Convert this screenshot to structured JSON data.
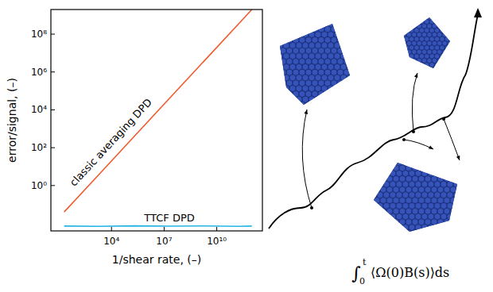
{
  "chart_data": {
    "type": "line",
    "x_label": "1/shear rate, (–)",
    "y_label": "error/signal, (–)",
    "log": true,
    "grid": false,
    "x": [
      20,
      2000,
      200000,
      20000000,
      2000000000,
      200000000000,
      1000000000000
    ],
    "series": [
      {
        "name": "classic averaging DPD",
        "color": "#f15a2e",
        "values": [
          0.04,
          4,
          400,
          40000,
          4000000,
          400000000,
          2000000000
        ]
      },
      {
        "name": "TTCF DPD",
        "color": "#27b4e6",
        "values": [
          0.0072,
          0.007,
          0.0074,
          0.0071,
          0.0073,
          0.007,
          0.0072
        ]
      }
    ],
    "xlim": [
      3.5,
      4000000000000
    ],
    "ylim": [
      0.004,
      2000000000
    ],
    "xticks": [
      {
        "value": 10000,
        "label": "10⁴"
      },
      {
        "value": 10000000,
        "label": "10⁷"
      },
      {
        "value": 10000000000,
        "label": "10¹⁰"
      }
    ],
    "yticks": [
      {
        "value": 1,
        "label": "10⁰"
      },
      {
        "value": 100,
        "label": "10²"
      },
      {
        "value": 10000,
        "label": "10⁴"
      },
      {
        "value": 1000000,
        "label": "10⁶"
      },
      {
        "value": 100000000,
        "label": "10⁸"
      }
    ]
  },
  "diagram": {
    "formula": {
      "integral": "∫",
      "lower": "0",
      "upper": "t",
      "integrand": "⟨Ω(0)B(s)⟩ds"
    }
  }
}
